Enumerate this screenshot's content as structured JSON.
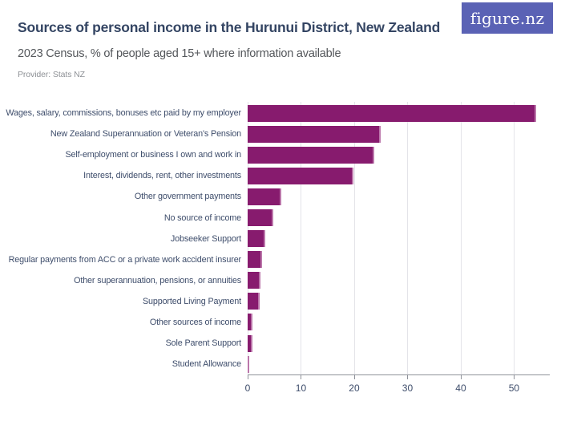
{
  "header": {
    "title": "Sources of personal income in the Hurunui District, New Zealand",
    "subtitle": "2023 Census, % of people aged 15+ where information available",
    "provider": "Provider: Stats NZ",
    "logo_text": "figure.nz"
  },
  "colors": {
    "bar": "#871B6E",
    "bar_edge": "#BB76AA",
    "logo_bg": "#5A62B5",
    "title": "#344563",
    "grid": "#E4E4E9",
    "axis": "#8F929A"
  },
  "chart_data": {
    "type": "bar",
    "orientation": "horizontal",
    "title": "Sources of personal income in the Hurunui District, New Zealand",
    "subtitle": "2023 Census, % of people aged 15+ where information available",
    "source": "Provider: Stats NZ",
    "unit": "%",
    "categories": [
      "Wages, salary, commissions, bonuses etc paid by my employer",
      "New Zealand Superannuation or Veteran's Pension",
      "Self-employment or business I own and work in",
      "Interest, dividends, rent, other investments",
      "Other government payments",
      "No source of income",
      "Jobseeker Support",
      "Regular payments from ACC or a private work accident insurer",
      "Other superannuation, pensions, or annuities",
      "Supported Living Payment",
      "Other sources of income",
      "Sole Parent Support",
      "Student Allowance"
    ],
    "values": [
      54.2,
      24.9,
      23.7,
      19.9,
      6.3,
      4.8,
      3.3,
      2.7,
      2.4,
      2.3,
      0.9,
      0.9,
      0.3
    ],
    "x_ticks": [
      0,
      10,
      20,
      30,
      40,
      50
    ],
    "xlim": [
      0,
      56.7
    ],
    "xlabel": "",
    "ylabel": "",
    "grid": "vertical-only",
    "legend": "none"
  }
}
